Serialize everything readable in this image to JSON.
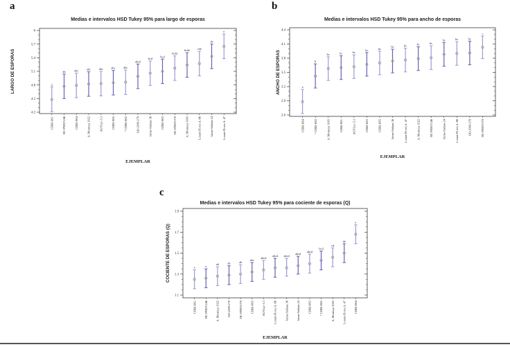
{
  "figure": {
    "panel_letters": {
      "a": "a",
      "b": "b",
      "c": "c"
    }
  },
  "colors": {
    "bar_light": "#9a9ad8",
    "bar_dark": "#6161b8",
    "marker": "#a8a199",
    "asterisk": "#cc2200",
    "axis": "#3a3a3a",
    "text": "#1a1a1a"
  },
  "chart_data": [
    {
      "id": "a",
      "panel_letter": "a",
      "type": "errorbar",
      "title": "Medias e intervalos HSD Tukey 95% para largo de esporas",
      "xlabel": "EJEMPLAR",
      "ylabel": "LARGO DE ESPORAS",
      "ylim": [
        4.2,
        6.0
      ],
      "ytick_step": 0.3,
      "minor_ticks_between": 2,
      "grid": false,
      "points": [
        {
          "category": "CIRB-H01",
          "mean": 4.48,
          "lo": 4.21,
          "hi": 4.76,
          "group_letter": "a",
          "flagged": false
        },
        {
          "category": "HC-PNNT-246",
          "mean": 4.77,
          "lo": 4.5,
          "hi": 5.04,
          "group_letter": "ab",
          "flagged": false
        },
        {
          "category": "CIRB-H04",
          "mean": 4.79,
          "lo": 4.52,
          "hi": 5.06,
          "group_letter": "abc",
          "flagged": false
        },
        {
          "category": "A. Montoya 3022",
          "mean": 4.82,
          "lo": 4.55,
          "hi": 5.09,
          "group_letter": "abc",
          "flagged": false
        },
        {
          "category": "AGYLyc-5.3",
          "mean": 4.83,
          "lo": 4.56,
          "hi": 5.1,
          "group_letter": "abc",
          "flagged": false
        },
        {
          "category": "CIRB-H05",
          "mean": 4.85,
          "lo": 4.58,
          "hi": 5.12,
          "group_letter": "abc",
          "flagged": false
        },
        {
          "category": "CIRB-H02",
          "mean": 4.86,
          "lo": 4.59,
          "hi": 5.13,
          "group_letter": "abc",
          "flagged": true
        },
        {
          "category": "GO-2009-278",
          "mean": 4.99,
          "lo": 4.72,
          "hi": 5.26,
          "group_letter": "abcd",
          "flagged": false
        },
        {
          "category": "Jaime-Salinas 36",
          "mean": 5.06,
          "lo": 4.79,
          "hi": 5.33,
          "group_letter": "bcd",
          "flagged": false
        },
        {
          "category": "CIRB-H03",
          "mean": 5.1,
          "lo": 4.83,
          "hi": 5.37,
          "group_letter": "bcd",
          "flagged": false
        },
        {
          "category": "HC-PNNT-078",
          "mean": 5.17,
          "lo": 4.9,
          "hi": 5.44,
          "group_letter": "bcde",
          "flagged": false
        },
        {
          "category": "A. Montoya 3005",
          "mean": 5.24,
          "lo": 4.97,
          "hi": 5.51,
          "group_letter": "bcde",
          "flagged": false
        },
        {
          "category": "Lorant-Flores A. 66",
          "mean": 5.27,
          "lo": 5.0,
          "hi": 5.54,
          "group_letter": "cde",
          "flagged": false
        },
        {
          "category": "Jaime-Salinas 24",
          "mean": 5.43,
          "lo": 5.16,
          "hi": 5.7,
          "group_letter": "de",
          "flagged": false
        },
        {
          "category": "Lorant-Flores A. 47",
          "mean": 5.65,
          "lo": 5.38,
          "hi": 5.92,
          "group_letter": "e",
          "flagged": false
        }
      ]
    },
    {
      "id": "b",
      "panel_letter": "b",
      "type": "errorbar",
      "title": "Medias e intervalos HSD Tukey 95% para ancho de esporas",
      "xlabel": "EJEMPLAR",
      "ylabel": "ANCHO DE ESPORAS",
      "ylim": [
        2.6,
        4.4
      ],
      "ytick_step": 0.3,
      "minor_ticks_between": 2,
      "grid": false,
      "points": [
        {
          "category": "CIRB-H04",
          "mean": 2.88,
          "lo": 2.63,
          "hi": 3.14,
          "group_letter": "a",
          "flagged": false
        },
        {
          "category": "CIRB-H02",
          "mean": 3.42,
          "lo": 3.17,
          "hi": 3.68,
          "group_letter": "b",
          "flagged": true
        },
        {
          "category": "A. Montoya 3005",
          "mean": 3.58,
          "lo": 3.33,
          "hi": 3.83,
          "group_letter": "bc",
          "flagged": false
        },
        {
          "category": "CIRB-H01",
          "mean": 3.6,
          "lo": 3.35,
          "hi": 3.85,
          "group_letter": "bc",
          "flagged": false
        },
        {
          "category": "AGYLyc-5.3",
          "mean": 3.62,
          "lo": 3.37,
          "hi": 3.87,
          "group_letter": "bc",
          "flagged": false
        },
        {
          "category": "CIRB-H03",
          "mean": 3.67,
          "lo": 3.42,
          "hi": 3.92,
          "group_letter": "bc",
          "flagged": false
        },
        {
          "category": "CIRB-H05",
          "mean": 3.7,
          "lo": 3.45,
          "hi": 3.95,
          "group_letter": "bc",
          "flagged": false
        },
        {
          "category": "Jaime-Salinas 36",
          "mean": 3.74,
          "lo": 3.49,
          "hi": 3.99,
          "group_letter": "bc",
          "flagged": false
        },
        {
          "category": "Lorant-Flores A. 47",
          "mean": 3.76,
          "lo": 3.51,
          "hi": 4.01,
          "group_letter": "bc",
          "flagged": false
        },
        {
          "category": "A. Montoya 3022",
          "mean": 3.79,
          "lo": 3.54,
          "hi": 4.04,
          "group_letter": "bc",
          "flagged": false
        },
        {
          "category": "HC-PNNT-246",
          "mean": 3.81,
          "lo": 3.56,
          "hi": 4.06,
          "group_letter": "bc",
          "flagged": false
        },
        {
          "category": "Jaime-Salinas 24",
          "mean": 3.88,
          "lo": 3.63,
          "hi": 4.13,
          "group_letter": "bc",
          "flagged": false
        },
        {
          "category": "Lorant-Flores A. 66",
          "mean": 3.9,
          "lo": 3.65,
          "hi": 4.15,
          "group_letter": "bc",
          "flagged": false
        },
        {
          "category": "GO-2009-278",
          "mean": 3.91,
          "lo": 3.66,
          "hi": 4.16,
          "group_letter": "bc",
          "flagged": false
        },
        {
          "category": "HC-PNNT-078",
          "mean": 4.03,
          "lo": 3.79,
          "hi": 4.27,
          "group_letter": "c",
          "flagged": false
        }
      ]
    },
    {
      "id": "c",
      "panel_letter": "c",
      "type": "errorbar",
      "title": "Medias e intervalos HSD Tukey 95% para cociente de esporas (Q)",
      "xlabel": "EJEMPLAR",
      "ylabel": "COCIENTE DE ESPORAS (Q)",
      "ylim": [
        1.1,
        1.9
      ],
      "ytick_step": 0.2,
      "minor_ticks_between": 3,
      "grid": false,
      "points": [
        {
          "category": "CIRB-H01",
          "mean": 1.25,
          "lo": 1.16,
          "hi": 1.34,
          "group_letter": "a",
          "flagged": false
        },
        {
          "category": "HC-PNNT-246",
          "mean": 1.26,
          "lo": 1.17,
          "hi": 1.35,
          "group_letter": "a",
          "flagged": false
        },
        {
          "category": "A. Montoya 3022",
          "mean": 1.28,
          "lo": 1.19,
          "hi": 1.37,
          "group_letter": "ab",
          "flagged": false
        },
        {
          "category": "GO-2009-278",
          "mean": 1.29,
          "lo": 1.2,
          "hi": 1.38,
          "group_letter": "ab",
          "flagged": false
        },
        {
          "category": "HC-PNNT-078",
          "mean": 1.3,
          "lo": 1.21,
          "hi": 1.39,
          "group_letter": "ab",
          "flagged": false
        },
        {
          "category": "CIRB-H05",
          "mean": 1.32,
          "lo": 1.23,
          "hi": 1.41,
          "group_letter": "abc",
          "flagged": false
        },
        {
          "category": "AGYLyc-5.3",
          "mean": 1.34,
          "lo": 1.25,
          "hi": 1.43,
          "group_letter": "abcd",
          "flagged": false
        },
        {
          "category": "Lorant-Flores A. 66",
          "mean": 1.36,
          "lo": 1.27,
          "hi": 1.45,
          "group_letter": "abcd",
          "flagged": false
        },
        {
          "category": "Jaime-Salinas 36",
          "mean": 1.36,
          "lo": 1.28,
          "hi": 1.45,
          "group_letter": "abcd",
          "flagged": false
        },
        {
          "category": "Jaime-Salinas 24",
          "mean": 1.38,
          "lo": 1.3,
          "hi": 1.47,
          "group_letter": "abcd",
          "flagged": false
        },
        {
          "category": "CIRB-H03",
          "mean": 1.4,
          "lo": 1.31,
          "hi": 1.49,
          "group_letter": "abcd",
          "flagged": false
        },
        {
          "category": "CIRB-H02",
          "mean": 1.43,
          "lo": 1.34,
          "hi": 1.52,
          "group_letter": "bcd",
          "flagged": true
        },
        {
          "category": "A. Montoya 3005",
          "mean": 1.46,
          "lo": 1.37,
          "hi": 1.55,
          "group_letter": "cd",
          "flagged": false
        },
        {
          "category": "Lorant-Flores A. 47",
          "mean": 1.5,
          "lo": 1.41,
          "hi": 1.59,
          "group_letter": "de",
          "flagged": false
        },
        {
          "category": "CIRB-H04",
          "mean": 1.68,
          "lo": 1.59,
          "hi": 1.77,
          "group_letter": "e",
          "flagged": false
        }
      ]
    }
  ]
}
